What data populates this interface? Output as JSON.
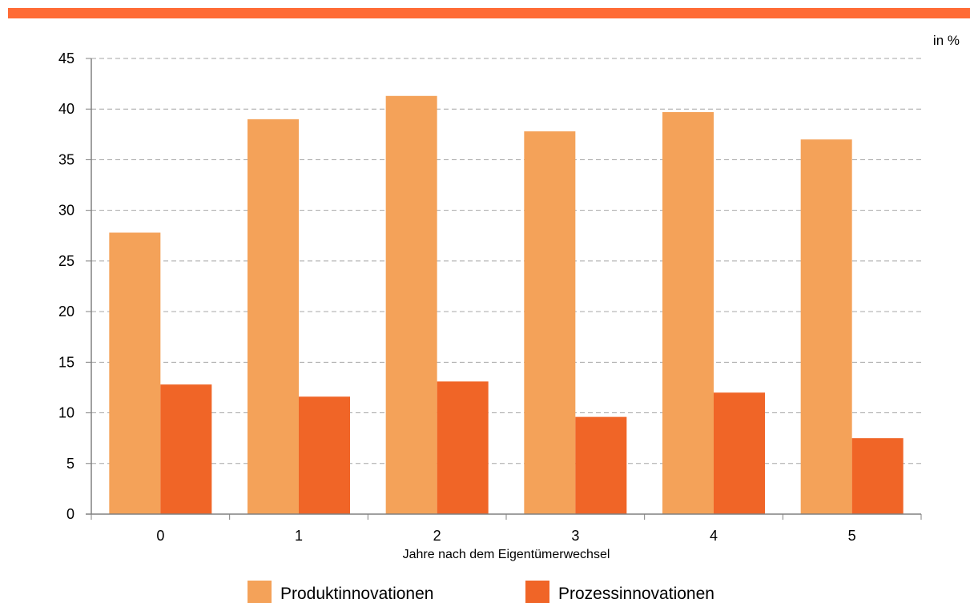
{
  "chart_data": {
    "type": "bar",
    "unit_label": "in %",
    "xlabel": "Jahre nach dem Eigentümerwechsel",
    "ylabel": "",
    "ylim": [
      0,
      45
    ],
    "yticks": [
      0,
      5,
      10,
      15,
      20,
      25,
      30,
      35,
      40,
      45
    ],
    "grid": true,
    "legend_position": "bottom",
    "categories": [
      "0",
      "1",
      "2",
      "3",
      "4",
      "5"
    ],
    "series": [
      {
        "name": "Produktinnovationen",
        "color": "#f4a259",
        "values": [
          27.8,
          39.0,
          41.3,
          37.8,
          39.7,
          37.0
        ]
      },
      {
        "name": "Prozessinnovationen",
        "color": "#f06527",
        "values": [
          12.8,
          11.6,
          13.1,
          9.6,
          12.0,
          7.5
        ]
      }
    ]
  },
  "colors": {
    "top_bar": "#ff6b35",
    "grid": "#a6a6a6",
    "axis": "#808080"
  }
}
